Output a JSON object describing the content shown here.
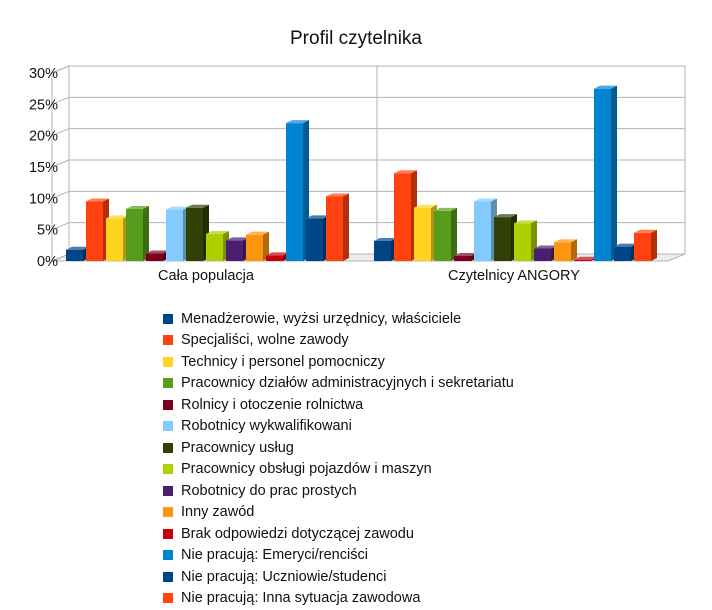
{
  "chart_data": {
    "type": "bar",
    "title": "Profil czytelnika",
    "categories": [
      "Cała populacja",
      "Czytelnicy ANGORY"
    ],
    "yticks": [
      "0%",
      "5%",
      "10%",
      "15%",
      "20%",
      "25%",
      "30%"
    ],
    "ylim": [
      0,
      30
    ],
    "grid": true,
    "legend_position": "bottom",
    "series": [
      {
        "name": "Menadżerowie, wyżsi urzędnicy, właściciele",
        "color": "#004586",
        "values": [
          1.8,
          3.2
        ]
      },
      {
        "name": "Specjaliści, wolne zawody",
        "color": "#ff420e",
        "values": [
          9.5,
          14.0
        ]
      },
      {
        "name": "Technicy i personel pomocniczy",
        "color": "#ffd320",
        "values": [
          6.8,
          8.5
        ]
      },
      {
        "name": "Pracownicy działów administracyjnych i sekretariatu",
        "color": "#579d1c",
        "values": [
          8.3,
          8.0
        ]
      },
      {
        "name": "Rolnicy i otoczenie rolnictwa",
        "color": "#7e0021",
        "values": [
          1.2,
          0.8
        ]
      },
      {
        "name": "Robotnicy wykwalifikowani",
        "color": "#83caff",
        "values": [
          8.2,
          9.5
        ]
      },
      {
        "name": "Pracownicy usług",
        "color": "#314004",
        "values": [
          8.5,
          7.0
        ]
      },
      {
        "name": "Pracownicy obsługi pojazdów i maszyn",
        "color": "#aecf00",
        "values": [
          4.3,
          6.0
        ]
      },
      {
        "name": "Robotnicy do prac prostych",
        "color": "#4b1f6f",
        "values": [
          3.3,
          2.0
        ]
      },
      {
        "name": "Inny zawód",
        "color": "#ff950e",
        "values": [
          4.2,
          3.0
        ]
      },
      {
        "name": "Brak odpowiedzi dotyczącej zawodu",
        "color": "#c5000b",
        "values": [
          0.9,
          0.2
        ]
      },
      {
        "name": "Nie pracują: Emeryci/renciści",
        "color": "#0084d1",
        "values": [
          22.0,
          27.5
        ]
      },
      {
        "name": "Nie pracują: Uczniowie/studenci",
        "color": "#004586",
        "values": [
          6.8,
          2.3
        ]
      },
      {
        "name": "Nie pracują: Inna sytuacja zawodowa",
        "color": "#ff420e",
        "values": [
          10.3,
          4.5
        ]
      }
    ]
  }
}
